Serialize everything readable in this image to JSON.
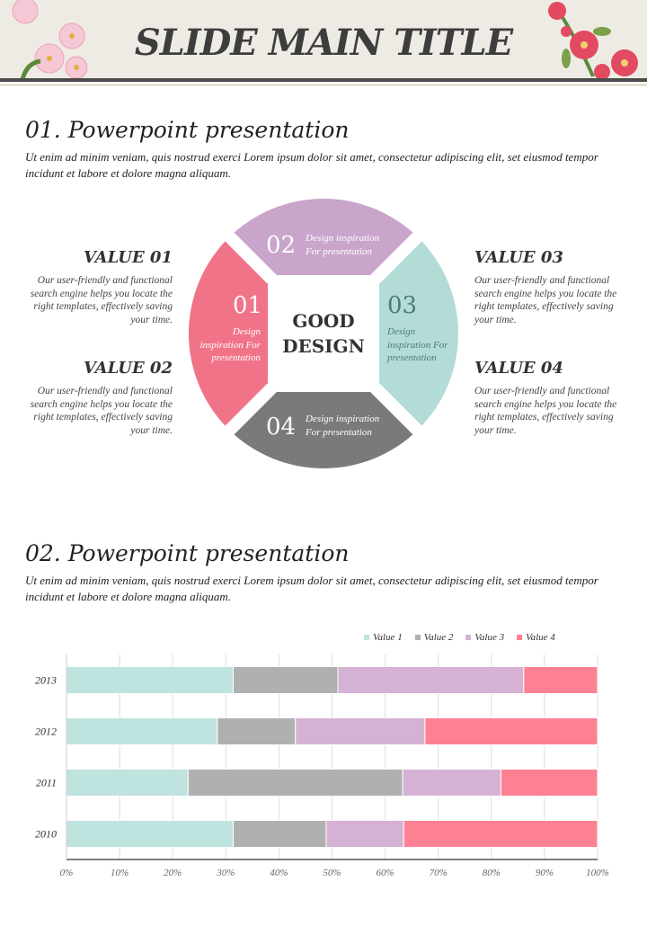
{
  "header": {
    "title": "SLIDE MAIN TITLE"
  },
  "section1": {
    "title": "01. Powerpoint presentation",
    "body": "Ut enim ad minim veniam, quis nostrud exerci  Lorem ipsum dolor sit amet, consectetur adipiscing elit, set eiusmod tempor incidunt et labore et dolore magna aliquam."
  },
  "diagram": {
    "center": [
      "GOOD",
      "DESIGN"
    ],
    "segments": [
      {
        "num": "01",
        "label": "Design inspiration For presentation",
        "color": "#f07388"
      },
      {
        "num": "02",
        "label": "Design inspiration For presentation",
        "color": "#c9a5cb"
      },
      {
        "num": "03",
        "label": "Design inspiration For presentation",
        "color": "#b3dcd7"
      },
      {
        "num": "04",
        "label": "Design inspiration For presentation",
        "color": "#7a7a7a"
      }
    ],
    "values": [
      {
        "title": "VALUE 01",
        "text": "Our user-friendly and functional search engine helps you locate the right templates, effectively saving your time."
      },
      {
        "title": "VALUE 02",
        "text": "Our user-friendly and functional search engine helps you locate the right templates, effectively saving your time."
      },
      {
        "title": "VALUE 03",
        "text": "Our user-friendly and functional search engine helps you locate the right templates, effectively saving your time."
      },
      {
        "title": "VALUE 04",
        "text": "Our user-friendly and functional search engine helps you locate the right templates, effectively saving your time."
      }
    ]
  },
  "section2": {
    "title": "02. Powerpoint presentation",
    "body": "Ut enim ad minim veniam, quis nostrud exerci  Lorem ipsum dolor sit amet, consectetur adipiscing elit, set eiusmod tempor incidunt et labore et dolore magna aliquam."
  },
  "chart_data": {
    "type": "bar",
    "orientation": "horizontal",
    "stacked": "percent",
    "categories": [
      "2013",
      "2012",
      "2011",
      "2010"
    ],
    "series": [
      {
        "name": "Value 1",
        "color": "#bfe3de",
        "values": [
          31.4,
          28.4,
          22.9,
          31.4
        ]
      },
      {
        "name": "Value 2",
        "color": "#b0b0b0",
        "values": [
          19.7,
          14.7,
          40.4,
          17.5
        ]
      },
      {
        "name": "Value 3",
        "color": "#d5b2d4",
        "values": [
          35.0,
          24.4,
          18.5,
          14.6
        ]
      },
      {
        "name": "Value 4",
        "color": "#fe8093",
        "values": [
          13.9,
          32.5,
          18.2,
          36.5
        ]
      }
    ],
    "xlim": [
      0,
      100
    ],
    "xticks": [
      "0%",
      "10%",
      "20%",
      "30%",
      "40%",
      "50%",
      "60%",
      "70%",
      "80%",
      "90%",
      "100%"
    ],
    "legend": "top-right",
    "grid": true
  }
}
